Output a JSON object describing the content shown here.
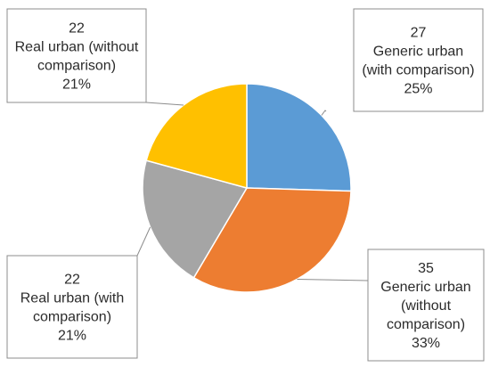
{
  "chart_data": {
    "type": "pie",
    "title": "",
    "slices": [
      {
        "label": "Generic urban (with comparison)",
        "value": 27,
        "percent": "25%",
        "color": "#5b9bd5"
      },
      {
        "label": "Generic urban (without comparison)",
        "value": 35,
        "percent": "33%",
        "color": "#ed7d31"
      },
      {
        "label": "Real urban (with comparison)",
        "value": 22,
        "percent": "21%",
        "color": "#a5a5a5"
      },
      {
        "label": "Real urban (without comparison)",
        "value": 22,
        "percent": "21%",
        "color": "#ffc000"
      }
    ],
    "data_labels": [
      {
        "value": "27",
        "lines": [
          "Generic urban",
          "(with comparison)"
        ],
        "percent": "25%"
      },
      {
        "value": "35",
        "lines": [
          "Generic urban",
          "(without",
          "comparison)"
        ],
        "percent": "33%"
      },
      {
        "value": "22",
        "lines": [
          "Real urban (with",
          "comparison)"
        ],
        "percent": "21%"
      },
      {
        "value": "22",
        "lines": [
          "Real urban (without",
          "comparison)"
        ],
        "percent": "21%"
      }
    ]
  }
}
